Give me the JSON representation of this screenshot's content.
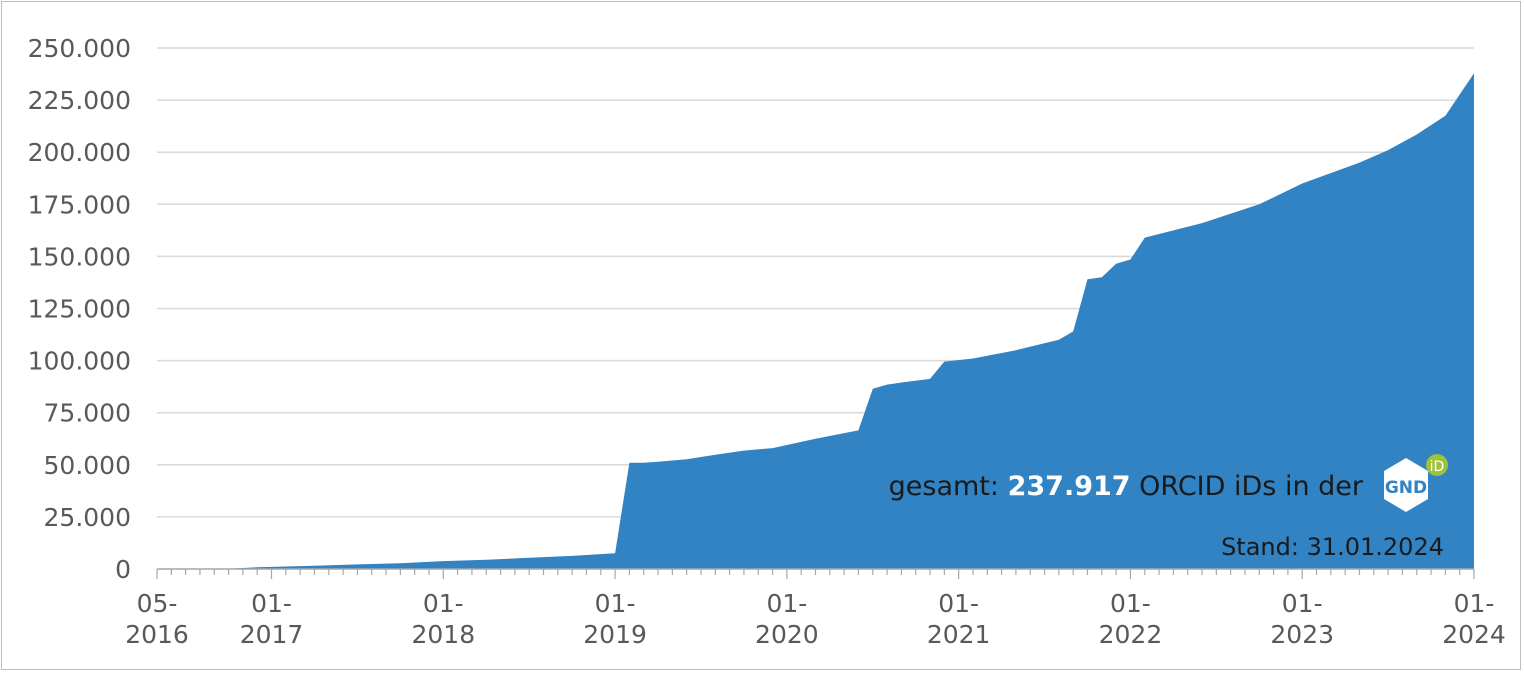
{
  "chart_data": {
    "type": "area",
    "title": "",
    "xlabel": "",
    "ylabel": "",
    "ylim": [
      0,
      250000
    ],
    "y_ticks": [
      0,
      25000,
      50000,
      75000,
      100000,
      125000,
      150000,
      175000,
      200000,
      225000,
      250000
    ],
    "y_tick_labels": [
      "0",
      "25.000",
      "50.000",
      "75.000",
      "100.000",
      "125.000",
      "150.000",
      "175.000",
      "200.000",
      "225.000",
      "250.000"
    ],
    "x_tick_labels": [
      {
        "date": "2016-05",
        "line1": "05-",
        "line2": "2016"
      },
      {
        "date": "2017-01",
        "line1": "01-",
        "line2": "2017"
      },
      {
        "date": "2018-01",
        "line1": "01-",
        "line2": "2018"
      },
      {
        "date": "2019-01",
        "line1": "01-",
        "line2": "2019"
      },
      {
        "date": "2020-01",
        "line1": "01-",
        "line2": "2020"
      },
      {
        "date": "2021-01",
        "line1": "01-",
        "line2": "2021"
      },
      {
        "date": "2022-01",
        "line1": "01-",
        "line2": "2022"
      },
      {
        "date": "2023-01",
        "line1": "01-",
        "line2": "2023"
      },
      {
        "date": "2024-01",
        "line1": "01-",
        "line2": "2024"
      }
    ],
    "grid": true,
    "color": "#3183c3",
    "series": [
      {
        "x": [
          "2016-05",
          "2016-06",
          "2016-07",
          "2016-08",
          "2016-09",
          "2016-10",
          "2016-11",
          "2016-12",
          "2017-01",
          "2017-04",
          "2017-07",
          "2017-10",
          "2018-01",
          "2018-04",
          "2018-07",
          "2018-10",
          "2019-01",
          "2019-02",
          "2019-03",
          "2019-04",
          "2019-06",
          "2019-08",
          "2019-10",
          "2019-12",
          "2020-03",
          "2020-06",
          "2020-07",
          "2020-08",
          "2020-09",
          "2020-11",
          "2020-12",
          "2021-02",
          "2021-05",
          "2021-08",
          "2021-09",
          "2021-10",
          "2021-11",
          "2021-12",
          "2022-01",
          "2022-02",
          "2022-06",
          "2022-10",
          "2023-01",
          "2023-05",
          "2023-07",
          "2023-09",
          "2023-11",
          "2024-01"
        ],
        "values": [
          0,
          0,
          0,
          0,
          0,
          200,
          500,
          800,
          1000,
          1600,
          2200,
          2800,
          3800,
          4400,
          5400,
          6300,
          7600,
          51000,
          51000,
          51500,
          52700,
          54800,
          56800,
          58000,
          62500,
          66500,
          86500,
          88500,
          89500,
          91200,
          99500,
          101000,
          105000,
          110000,
          114000,
          139000,
          140000,
          146500,
          148500,
          159000,
          166000,
          175000,
          185000,
          195000,
          201000,
          208500,
          217500,
          237917
        ]
      }
    ]
  },
  "annotation": {
    "prefix": "gesamt: ",
    "value": "237.917",
    "suffix": " ORCID iDs in der",
    "logo_text": "GND",
    "logo_badge": "iD",
    "stand": "Stand: 31.01.2024"
  }
}
